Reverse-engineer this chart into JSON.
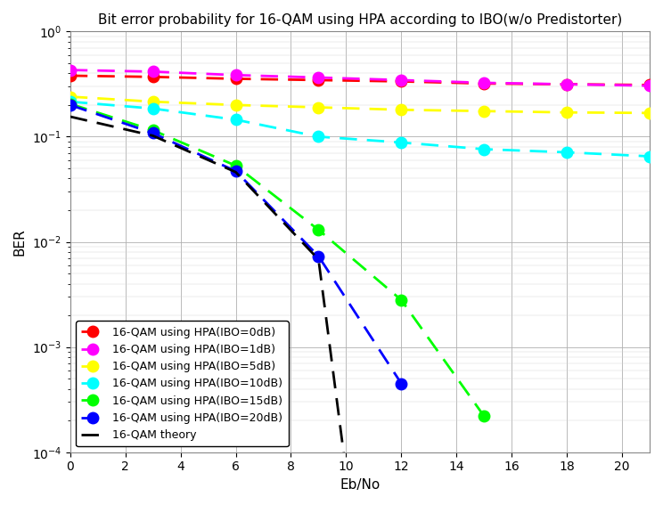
{
  "title": "Bit error probability for 16-QAM using HPA according to IBO(w/o Predistorter)",
  "xlabel": "Eb/No",
  "ylabel": "BER",
  "xlim": [
    0,
    21
  ],
  "ylim_log": [
    -4,
    0
  ],
  "xticks": [
    0,
    2,
    4,
    6,
    8,
    10,
    12,
    14,
    16,
    18,
    20
  ],
  "series": [
    {
      "label": "16-QAM using HPA(IBO=0dB)",
      "color": "#ff0000",
      "x": [
        0,
        3,
        6,
        9,
        12,
        15,
        18,
        21
      ],
      "y": [
        0.38,
        0.37,
        0.355,
        0.345,
        0.335,
        0.32,
        0.315,
        0.31
      ]
    },
    {
      "label": "16-QAM using HPA(IBO=1dB)",
      "color": "#ff00ff",
      "x": [
        0,
        3,
        6,
        9,
        12,
        15,
        18,
        21
      ],
      "y": [
        0.43,
        0.415,
        0.385,
        0.365,
        0.345,
        0.325,
        0.315,
        0.305
      ]
    },
    {
      "label": "16-QAM using HPA(IBO=5dB)",
      "color": "#ffff00",
      "x": [
        0,
        3,
        6,
        9,
        12,
        15,
        18,
        21
      ],
      "y": [
        0.24,
        0.215,
        0.2,
        0.19,
        0.18,
        0.175,
        0.17,
        0.168
      ]
    },
    {
      "label": "16-QAM using HPA(IBO=10dB)",
      "color": "#00ffff",
      "x": [
        0,
        3,
        6,
        9,
        12,
        15,
        18,
        21
      ],
      "y": [
        0.215,
        0.185,
        0.145,
        0.1,
        0.088,
        0.076,
        0.071,
        0.065
      ]
    },
    {
      "label": "16-QAM using HPA(IBO=15dB)",
      "color": "#00ff00",
      "x": [
        0,
        3,
        6,
        9,
        12,
        15
      ],
      "y": [
        0.205,
        0.115,
        0.053,
        0.013,
        0.0028,
        0.00022
      ]
    },
    {
      "label": "16-QAM using HPA(IBO=20dB)",
      "color": "#0000ff",
      "x": [
        0,
        3,
        6,
        9,
        12
      ],
      "y": [
        0.2,
        0.108,
        0.047,
        0.0073,
        0.00045
      ]
    },
    {
      "label": "16-QAM theory",
      "color": "#000000",
      "x": [
        0,
        3,
        6,
        9,
        10
      ],
      "y": [
        0.155,
        0.102,
        0.046,
        0.0068,
        6.5e-05
      ],
      "no_marker": true
    }
  ],
  "background_color": "#ffffff",
  "title_fontsize": 11,
  "axis_fontsize": 11,
  "legend_fontsize": 9,
  "marker_size": 9,
  "linewidth": 2.0,
  "dash_on": 7,
  "dash_off": 4
}
